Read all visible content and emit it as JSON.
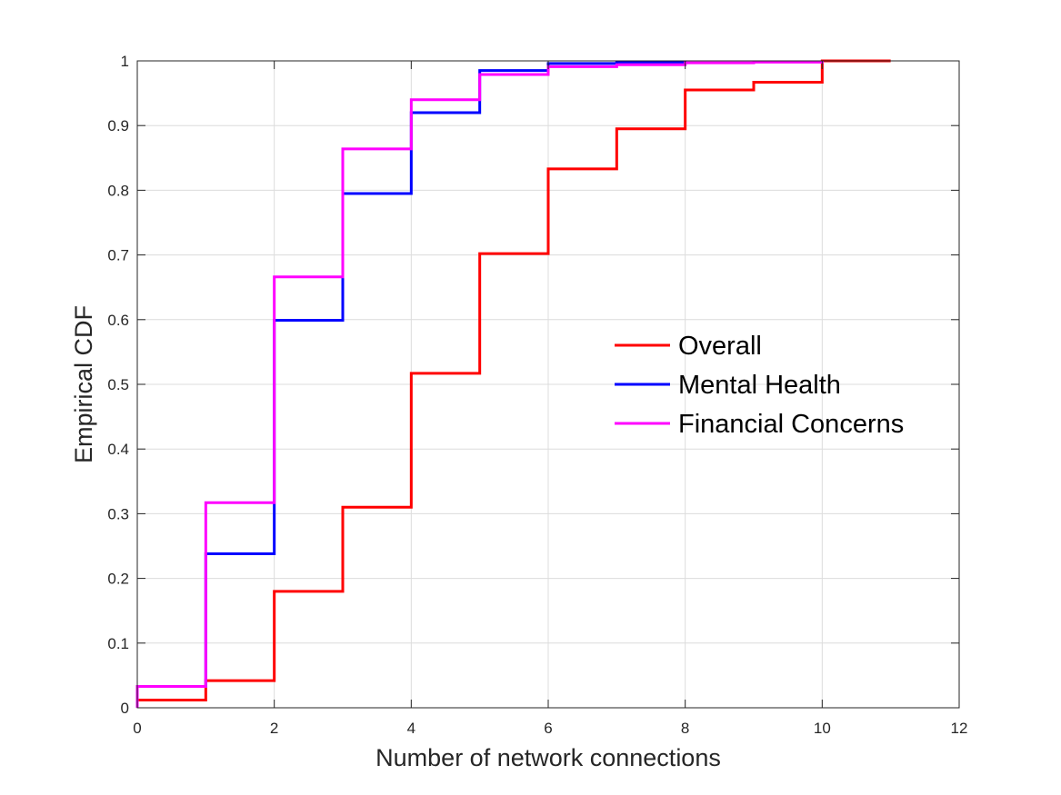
{
  "chart_data": {
    "type": "line",
    "title": "",
    "xlabel": "Number of network connections",
    "ylabel": "Empirical CDF",
    "xlim": [
      0,
      12
    ],
    "ylim": [
      0,
      1
    ],
    "xticks": [
      "0",
      "2",
      "4",
      "6",
      "8",
      "10",
      "12"
    ],
    "yticks": [
      "0",
      "0.1",
      "0.2",
      "0.3",
      "0.4",
      "0.5",
      "0.6",
      "0.7",
      "0.8",
      "0.9",
      "1"
    ],
    "grid": true,
    "legend_position": "right-middle",
    "series": [
      {
        "name": "Overall",
        "color": "#ff0000",
        "x": [
          0,
          1,
          2,
          3,
          4,
          5,
          6,
          7,
          8,
          9,
          10,
          11
        ],
        "y": [
          0.012,
          0.042,
          0.18,
          0.31,
          0.517,
          0.702,
          0.833,
          0.895,
          0.955,
          0.967,
          1.0,
          1.0
        ]
      },
      {
        "name": "Mental Health",
        "color": "#0000ff",
        "x": [
          0,
          1,
          2,
          3,
          4,
          5,
          6,
          7,
          8
        ],
        "y": [
          0.033,
          0.238,
          0.599,
          0.795,
          0.92,
          0.985,
          0.996,
          0.998,
          1.0
        ]
      },
      {
        "name": "Financial Concerns",
        "color": "#ff00ff",
        "x": [
          0,
          1,
          2,
          3,
          4,
          5,
          6,
          7,
          8,
          9,
          10
        ],
        "y": [
          0.033,
          0.317,
          0.666,
          0.864,
          0.94,
          0.979,
          0.991,
          0.994,
          0.997,
          0.998,
          1.0
        ]
      }
    ]
  }
}
